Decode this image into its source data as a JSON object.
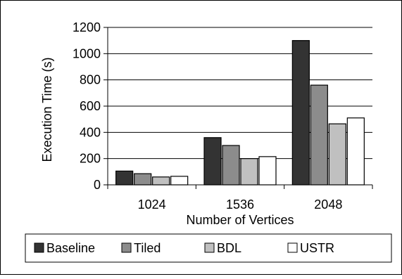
{
  "chart_data": {
    "type": "bar",
    "title": "",
    "xlabel": "Number of Vertices",
    "ylabel": "Execution Time (s)",
    "categories": [
      "1024",
      "1536",
      "2048"
    ],
    "series": [
      {
        "name": "Baseline",
        "color": "#333333",
        "values": [
          105,
          360,
          1100
        ]
      },
      {
        "name": "Tiled",
        "color": "#8c8c8c",
        "values": [
          85,
          300,
          760
        ]
      },
      {
        "name": "BDL",
        "color": "#c0c0c0",
        "values": [
          60,
          200,
          465
        ]
      },
      {
        "name": "USTR",
        "color": "#ffffff",
        "values": [
          65,
          215,
          510
        ]
      }
    ],
    "ylim": [
      0,
      1200
    ],
    "yticks": [
      "0",
      "200",
      "400",
      "600",
      "800",
      "1000",
      "1200"
    ],
    "grid": true,
    "legend_position": "bottom"
  }
}
